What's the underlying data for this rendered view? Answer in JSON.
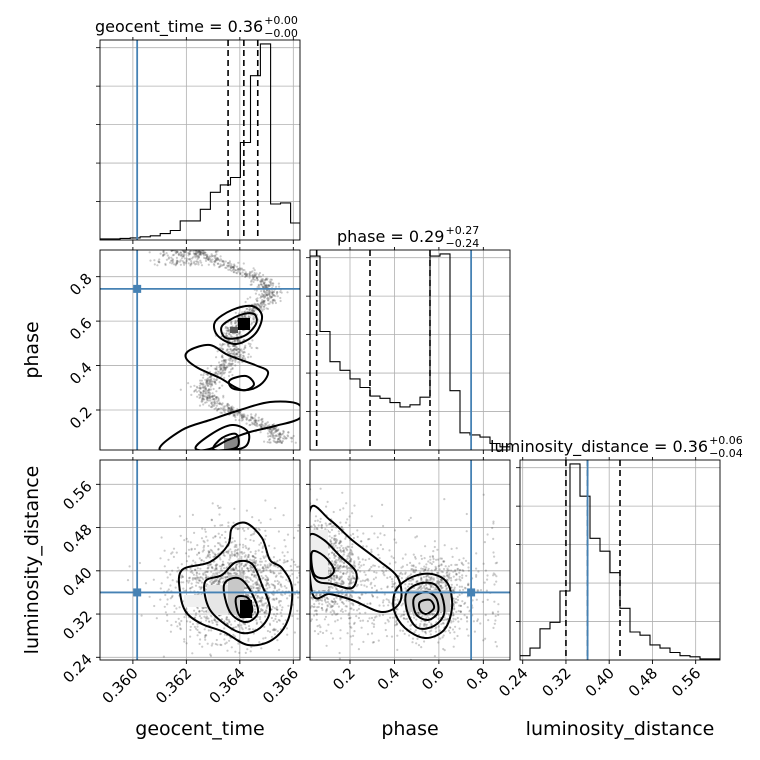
{
  "chart_data": {
    "type": "corner",
    "parameters": [
      "geocent_time",
      "phase",
      "luminosity_distance"
    ],
    "titles": [
      {
        "param": "geocent_time",
        "median": "0.36",
        "plus": "+0.00",
        "minus": "−0.00"
      },
      {
        "param": "phase",
        "median": "0.29",
        "plus": "+0.27",
        "minus": "−0.24"
      },
      {
        "param": "luminosity_distance",
        "median": "0.36",
        "plus": "+0.06",
        "minus": "−0.04"
      }
    ],
    "ranges": {
      "geocent_time": [
        0.35877,
        0.36625
      ],
      "phase": [
        0.02,
        0.92
      ],
      "luminosity_distance": [
        0.235,
        0.605
      ]
    },
    "ticks": {
      "geocent_time": {
        "values": [
          0.36,
          0.362,
          0.364,
          0.366
        ],
        "labels": [
          "0.360",
          "0.362",
          "0.364",
          "0.366"
        ]
      },
      "phase": {
        "values": [
          0.2,
          0.4,
          0.6,
          0.8
        ],
        "labels": [
          "0.2",
          "0.4",
          "0.6",
          "0.8"
        ]
      },
      "luminosity_distance": {
        "values": [
          0.24,
          0.32,
          0.4,
          0.48,
          0.56
        ],
        "labels": [
          "0.24",
          "0.32",
          "0.40",
          "0.48",
          "0.56"
        ]
      }
    },
    "truths": {
      "geocent_time": 0.36016,
      "phase": 0.745,
      "luminosity_distance": 0.36
    },
    "quantiles": {
      "geocent_time": [
        0.36356,
        0.36415,
        0.36467
      ],
      "phase": [
        0.05,
        0.29,
        0.56
      ],
      "luminosity_distance": [
        0.32,
        0.36,
        0.42
      ]
    },
    "histograms": {
      "geocent_time": {
        "edges": [
          0.35877,
          0.35915,
          0.35952,
          0.3599,
          0.36027,
          0.36065,
          0.36102,
          0.3614,
          0.36177,
          0.36215,
          0.36252,
          0.3629,
          0.36327,
          0.36365,
          0.36402,
          0.3644,
          0.36477,
          0.36515,
          0.36552,
          0.3659,
          0.36625
        ],
        "counts": [
          1,
          1,
          1.5,
          2,
          3,
          4,
          6,
          9,
          18,
          18,
          29,
          45,
          52,
          59,
          92,
          155,
          185,
          34,
          35,
          16
        ]
      },
      "phase": {
        "edges": [
          0.02,
          0.065,
          0.11,
          0.155,
          0.2,
          0.245,
          0.29,
          0.335,
          0.38,
          0.425,
          0.47,
          0.515,
          0.56,
          0.605,
          0.65,
          0.695,
          0.74,
          0.785,
          0.83,
          0.875,
          0.92
        ],
        "counts": [
          180,
          110,
          82,
          74,
          66,
          58,
          50,
          48,
          44,
          40,
          42,
          49,
          180,
          182,
          55,
          16,
          14,
          12,
          6,
          3
        ]
      },
      "luminosity_distance": {
        "edges": [
          0.235,
          0.2535,
          0.272,
          0.2905,
          0.309,
          0.3275,
          0.346,
          0.3645,
          0.383,
          0.4015,
          0.42,
          0.4385,
          0.457,
          0.4755,
          0.494,
          0.5125,
          0.531,
          0.5495,
          0.568,
          0.5865,
          0.605
        ],
        "counts": [
          4,
          11,
          29,
          35,
          64,
          182,
          152,
          113,
          101,
          81,
          48,
          26,
          23,
          14,
          11,
          7,
          4,
          3,
          1,
          1
        ]
      }
    },
    "contour_levels": [
      "0.5",
      "1.0",
      "1.5",
      "2.0"
    ]
  }
}
